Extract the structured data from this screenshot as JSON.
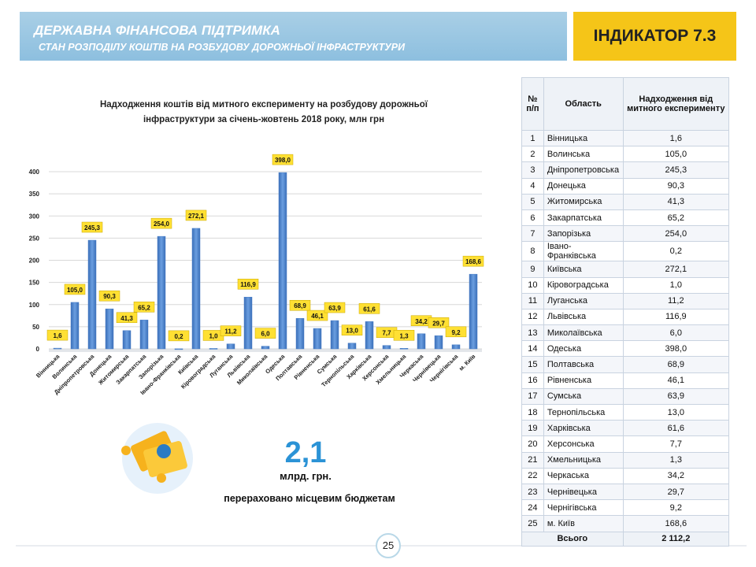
{
  "header": {
    "title": "ДЕРЖАВНА ФІНАНСОВА  ПІДТРИМКА",
    "subtitle": "СТАН РОЗПОДІЛУ КОШТІВ НА РОЗБУДОВУ ДОРОЖНЬОЇ ІНФРАСТРУКТУРИ"
  },
  "indicator": "ІНДИКАТОР 7.3",
  "chart_data": {
    "type": "bar",
    "title": "Надходження коштів від митного експерименту на розбудову дорожньої інфраструктури за січень-жовтень 2018 року, млн грн",
    "categories": [
      "Вінницька",
      "Волинська",
      "Дніпропетровська",
      "Донецька",
      "Житомирська",
      "Закарпатська",
      "Запорізька",
      "Івано-Франківська",
      "Київська",
      "Кіровоградська",
      "Луганська",
      "Львівська",
      "Миколаївська",
      "Одеська",
      "Полтавська",
      "Рівненська",
      "Сумська",
      "Тернопільська",
      "Харківська",
      "Херсонська",
      "Хмельницька",
      "Черкаська",
      "Чернівецька",
      "Чернігівська",
      "м. Київ"
    ],
    "values": [
      1.6,
      105.0,
      245.3,
      90.3,
      41.3,
      65.2,
      254.0,
      0.2,
      272.1,
      1.0,
      11.2,
      116.9,
      6.0,
      398.0,
      68.9,
      46.1,
      63.9,
      13.0,
      61.6,
      7.7,
      1.3,
      34.2,
      29.7,
      9.2,
      168.6
    ],
    "value_labels": [
      "1,6",
      "105,0",
      "245,3",
      "90,3",
      "41,3",
      "65,2",
      "254,0",
      "0,2",
      "272,1",
      "1,0",
      "11,2",
      "116,9",
      "6,0",
      "398,0",
      "68,9",
      "46,1",
      "63,9",
      "13,0",
      "61,6",
      "7,7",
      "1,3",
      "34,2",
      "29,7",
      "9,2",
      "168,6"
    ],
    "color": "#4a7fc8",
    "ylim": [
      0,
      400
    ],
    "yticks": [
      0,
      50,
      100,
      150,
      200,
      250,
      300,
      350,
      400
    ],
    "grid": true
  },
  "summary": {
    "value": "2,1",
    "unit": "млрд. грн.",
    "text": "перераховано місцевим бюджетам"
  },
  "table": {
    "columns": [
      "№ п/п",
      "Область",
      "Надходження від митного експерименту"
    ],
    "rows": [
      [
        "1",
        "Вінницька",
        "1,6"
      ],
      [
        "2",
        "Волинська",
        "105,0"
      ],
      [
        "3",
        "Дніпропетровська",
        "245,3"
      ],
      [
        "4",
        "Донецька",
        "90,3"
      ],
      [
        "5",
        "Житомирська",
        "41,3"
      ],
      [
        "6",
        "Закарпатська",
        "65,2"
      ],
      [
        "7",
        "Запорізька",
        "254,0"
      ],
      [
        "8",
        "Івано-Франківська",
        "0,2"
      ],
      [
        "9",
        "Київська",
        "272,1"
      ],
      [
        "10",
        "Кіровоградська",
        "1,0"
      ],
      [
        "11",
        "Луганська",
        "11,2"
      ],
      [
        "12",
        "Львівська",
        "116,9"
      ],
      [
        "13",
        "Миколаївська",
        "6,0"
      ],
      [
        "14",
        "Одеська",
        "398,0"
      ],
      [
        "15",
        "Полтавська",
        "68,9"
      ],
      [
        "16",
        "Рівненська",
        "46,1"
      ],
      [
        "17",
        "Сумська",
        "63,9"
      ],
      [
        "18",
        "Тернопільська",
        "13,0"
      ],
      [
        "19",
        "Харківська",
        "61,6"
      ],
      [
        "20",
        "Херсонська",
        "7,7"
      ],
      [
        "21",
        "Хмельницька",
        "1,3"
      ],
      [
        "22",
        "Черкаська",
        "34,2"
      ],
      [
        "23",
        "Чернівецька",
        "29,7"
      ],
      [
        "24",
        "Чернігівська",
        "9,2"
      ],
      [
        "25",
        "м. Київ",
        "168,6"
      ]
    ],
    "total": [
      "Всього",
      "2 112,2"
    ]
  },
  "page_number": "25"
}
